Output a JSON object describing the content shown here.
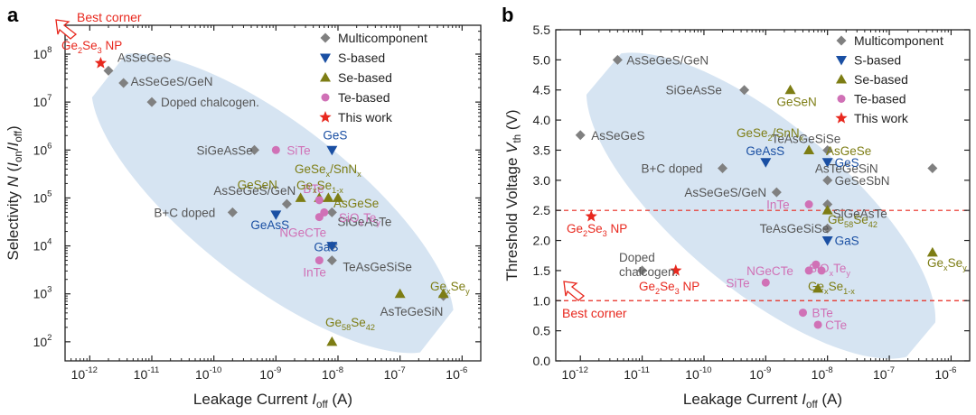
{
  "colors": {
    "multi": "#808080",
    "s": "#1a4fa3",
    "se": "#7d7d14",
    "te": "#d071b6",
    "work": "#e8281e",
    "ellipse": "#c8dbee",
    "label_grey": "#555555"
  },
  "chart_data": [
    {
      "panel": "a",
      "type": "scatter",
      "xlabel": {
        "main": "Leakage Current ",
        "sym": "I",
        "sub": "off",
        "unit": " (A)"
      },
      "ylabel": {
        "pre": "Selectivity ",
        "sym": "N",
        "open": " (",
        "num": "I",
        "num_sub": "on",
        "slash": "/",
        "den": "I",
        "den_sub": "off",
        "close": ")"
      },
      "xscale": "log",
      "yscale": "log",
      "xlim": [
        4e-13,
        2e-06
      ],
      "ylim": [
        40.0,
        400000000.0
      ],
      "x_ticks": [
        {
          "v": 1e-12,
          "b": "10",
          "e": "-12"
        },
        {
          "v": 1e-11,
          "b": "10",
          "e": "-11"
        },
        {
          "v": 1e-10,
          "b": "10",
          "e": "-10"
        },
        {
          "v": 1e-09,
          "b": "10",
          "e": "-9"
        },
        {
          "v": 1e-08,
          "b": "10",
          "e": "-8"
        },
        {
          "v": 1e-07,
          "b": "10",
          "e": "-7"
        },
        {
          "v": 1e-06,
          "b": "10",
          "e": "-6"
        }
      ],
      "y_ticks": [
        {
          "v": 100.0,
          "b": "10",
          "e": "2"
        },
        {
          "v": 1000.0,
          "b": "10",
          "e": "3"
        },
        {
          "v": 10000.0,
          "b": "10",
          "e": "4"
        },
        {
          "v": 100000.0,
          "b": "10",
          "e": "5"
        },
        {
          "v": 1000000.0,
          "b": "10",
          "e": "6"
        },
        {
          "v": 10000000.0,
          "b": "10",
          "e": "7"
        },
        {
          "v": 100000000.0,
          "b": "10",
          "e": "8"
        }
      ],
      "legend": {
        "position": "top-right",
        "entries": [
          {
            "cat": "multi",
            "label": "Multicomponent"
          },
          {
            "cat": "s",
            "label": "S-based"
          },
          {
            "cat": "se",
            "label": "Se-based"
          },
          {
            "cat": "te",
            "label": "Te-based"
          },
          {
            "cat": "work",
            "label": "This work"
          }
        ]
      },
      "best_corner": "Best corner",
      "points": [
        {
          "cat": "multi",
          "x": 2e-12,
          "y": 45000000.0,
          "label": "AsSeGeS"
        },
        {
          "cat": "multi",
          "x": 3.5e-12,
          "y": 25000000.0,
          "label": "AsSeGeS/GeN"
        },
        {
          "cat": "multi",
          "x": 1e-11,
          "y": 10000000.0,
          "label": "Doped chalcogen."
        },
        {
          "cat": "multi",
          "x": 4.5e-10,
          "y": 1000000.0,
          "label": "SiGeAsSe"
        },
        {
          "cat": "multi",
          "x": 2e-10,
          "y": 50000.0,
          "label": "B+C doped"
        },
        {
          "cat": "multi",
          "x": 1.5e-09,
          "y": 75000.0,
          "label": "AsSeGeS/GeN"
        },
        {
          "cat": "multi",
          "x": 8e-09,
          "y": 50000.0,
          "label": "SiGeAsTe"
        },
        {
          "cat": "multi",
          "x": 8e-09,
          "y": 10000.0,
          "label": ""
        },
        {
          "cat": "multi",
          "x": 8e-09,
          "y": 5000.0,
          "label": "TeAsGeSiSe"
        },
        {
          "cat": "multi",
          "x": 5e-07,
          "y": 900,
          "label": "AsTeGeSiN"
        },
        {
          "cat": "s",
          "x": 8e-09,
          "y": 1000000.0,
          "label": "GeS"
        },
        {
          "cat": "s",
          "x": 1e-09,
          "y": 45000.0,
          "label": "GeAsS"
        },
        {
          "cat": "s",
          "x": 8e-09,
          "y": 10000.0,
          "label": "GaS"
        },
        {
          "cat": "se",
          "x": 2.5e-09,
          "y": 100000.0,
          "label": "GeSeN"
        },
        {
          "cat": "se",
          "x": 5e-09,
          "y": 100000.0,
          "label": ""
        },
        {
          "cat": "se",
          "x": 7e-09,
          "y": 100000.0,
          "label": ""
        },
        {
          "cat": "se",
          "x": 1e-08,
          "y": 100000.0,
          "label": ""
        },
        {
          "cat": "se",
          "x": 1e-07,
          "y": 1000.0,
          "label": ""
        },
        {
          "cat": "se",
          "x": 5e-07,
          "y": 1000.0,
          "label": ""
        },
        {
          "cat": "se",
          "x": 8e-09,
          "y": 100,
          "label": ""
        },
        {
          "cat": "te",
          "x": 1e-09,
          "y": 1000000.0,
          "label": "SiTe"
        },
        {
          "cat": "te",
          "x": 5e-09,
          "y": 90000.0,
          "label": "BTe"
        },
        {
          "cat": "te",
          "x": 6e-09,
          "y": 50000.0,
          "label": ""
        },
        {
          "cat": "te",
          "x": 5e-09,
          "y": 40000.0,
          "label": "NGeCTe"
        },
        {
          "cat": "te",
          "x": 5e-09,
          "y": 5000.0,
          "label": "InTe"
        },
        {
          "cat": "work",
          "x": 1.5e-12,
          "y": 65000000.0,
          "label": ""
        }
      ],
      "chem_labels": [
        {
          "cat": "work",
          "parts": [
            [
              "Ge",
              ""
            ],
            [
              "2",
              "sub"
            ],
            [
              "Se",
              ""
            ],
            [
              "3",
              "sub"
            ],
            [
              " NP",
              ""
            ]
          ]
        },
        {
          "cat": "se",
          "parts": [
            [
              "GeSe",
              ""
            ],
            [
              "x",
              "sub"
            ],
            [
              "/SnN",
              ""
            ],
            [
              "x",
              "sub"
            ]
          ]
        },
        {
          "cat": "se",
          "parts": [
            [
              "Ge",
              ""
            ],
            [
              "x",
              "sub"
            ],
            [
              "Se",
              ""
            ],
            [
              "1-x",
              "sub"
            ]
          ]
        },
        {
          "cat": "se",
          "parts": [
            [
              "AsGeSe",
              ""
            ]
          ]
        },
        {
          "cat": "te",
          "parts": [
            [
              "SiO",
              ""
            ],
            [
              "x",
              "sub"
            ],
            [
              "Te",
              ""
            ],
            [
              "y",
              "sub"
            ]
          ]
        },
        {
          "cat": "se",
          "parts": [
            [
              "Ge",
              ""
            ],
            [
              "x",
              "sub"
            ],
            [
              "Se",
              ""
            ],
            [
              "y",
              "sub"
            ]
          ]
        },
        {
          "cat": "se",
          "parts": [
            [
              "Ge",
              ""
            ],
            [
              "58",
              "sub"
            ],
            [
              "Se",
              ""
            ],
            [
              "42",
              "sub"
            ]
          ]
        }
      ]
    },
    {
      "panel": "b",
      "type": "scatter",
      "xlabel": {
        "main": "Leakage Current ",
        "sym": "I",
        "sub": "off",
        "unit": " (A)"
      },
      "ylabel": {
        "pre": "Threshold Voltage ",
        "sym": "V",
        "sub": "th",
        "unit": " (V)"
      },
      "xscale": "log",
      "yscale": "linear",
      "xlim": [
        4e-13,
        2e-06
      ],
      "ylim": [
        0,
        5.5
      ],
      "x_ticks": [
        {
          "v": 1e-12,
          "b": "10",
          "e": "-12"
        },
        {
          "v": 1e-11,
          "b": "10",
          "e": "-11"
        },
        {
          "v": 1e-10,
          "b": "10",
          "e": "-10"
        },
        {
          "v": 1e-09,
          "b": "10",
          "e": "-9"
        },
        {
          "v": 1e-08,
          "b": "10",
          "e": "-8"
        },
        {
          "v": 1e-07,
          "b": "10",
          "e": "-7"
        },
        {
          "v": 1e-06,
          "b": "10",
          "e": "-6"
        }
      ],
      "y_ticks": [
        "0.0",
        "0.5",
        "1.0",
        "1.5",
        "2.0",
        "2.5",
        "3.0",
        "3.5",
        "4.0",
        "4.5",
        "5.0",
        "5.5"
      ],
      "dashed_lines": [
        1.0,
        2.5
      ],
      "legend": {
        "position": "top-right",
        "entries": [
          {
            "cat": "multi",
            "label": "Multicomponent"
          },
          {
            "cat": "s",
            "label": "S-based"
          },
          {
            "cat": "se",
            "label": "Se-based"
          },
          {
            "cat": "te",
            "label": "Te-based"
          },
          {
            "cat": "work",
            "label": "This work"
          }
        ]
      },
      "best_corner": "Best corner",
      "points": [
        {
          "cat": "multi",
          "x": 4e-12,
          "y": 5.0,
          "label": "AsSeGeS/GeN"
        },
        {
          "cat": "multi",
          "x": 4.5e-10,
          "y": 4.5,
          "label": "SiGeAsSe"
        },
        {
          "cat": "multi",
          "x": 1e-12,
          "y": 3.75,
          "label": "AsSeGeS"
        },
        {
          "cat": "multi",
          "x": 2e-10,
          "y": 3.2,
          "label": "B+C doped"
        },
        {
          "cat": "multi",
          "x": 1e-08,
          "y": 3.5,
          "label": "TeAsGeSiSe"
        },
        {
          "cat": "multi",
          "x": 1e-08,
          "y": 3.0,
          "label": "GeSeSbN"
        },
        {
          "cat": "multi",
          "x": 5e-07,
          "y": 3.2,
          "label": "AsTeGeSiN"
        },
        {
          "cat": "multi",
          "x": 1.5e-09,
          "y": 2.8,
          "label": "AsSeGeS/GeN"
        },
        {
          "cat": "multi",
          "x": 1e-08,
          "y": 2.6,
          "label": "SiGeAsTe"
        },
        {
          "cat": "multi",
          "x": 1e-08,
          "y": 2.2,
          "label": "TeAsGeSiSe"
        },
        {
          "cat": "multi",
          "x": 1e-11,
          "y": 1.5,
          "label": ""
        },
        {
          "cat": "s",
          "x": 1e-09,
          "y": 3.3,
          "label": "GeAsS"
        },
        {
          "cat": "s",
          "x": 1e-08,
          "y": 3.3,
          "label": "GeS"
        },
        {
          "cat": "s",
          "x": 1e-08,
          "y": 2.0,
          "label": "GaS"
        },
        {
          "cat": "se",
          "x": 2.5e-09,
          "y": 4.5,
          "label": "GeSeN"
        },
        {
          "cat": "se",
          "x": 5e-09,
          "y": 3.5,
          "label": ""
        },
        {
          "cat": "se",
          "x": 1e-08,
          "y": 2.5,
          "label": ""
        },
        {
          "cat": "se",
          "x": 7e-09,
          "y": 1.2,
          "label": ""
        },
        {
          "cat": "se",
          "x": 5e-07,
          "y": 1.8,
          "label": ""
        },
        {
          "cat": "te",
          "x": 5e-09,
          "y": 2.6,
          "label": "InTe"
        },
        {
          "cat": "te",
          "x": 5e-09,
          "y": 1.5,
          "label": "NGeCTe"
        },
        {
          "cat": "te",
          "x": 6.5e-09,
          "y": 1.6,
          "label": ""
        },
        {
          "cat": "te",
          "x": 8e-09,
          "y": 1.5,
          "label": ""
        },
        {
          "cat": "te",
          "x": 1e-09,
          "y": 1.3,
          "label": "SiTe"
        },
        {
          "cat": "te",
          "x": 4e-09,
          "y": 0.8,
          "label": "BTe"
        },
        {
          "cat": "te",
          "x": 7e-09,
          "y": 0.6,
          "label": "CTe"
        },
        {
          "cat": "work",
          "x": 1.5e-12,
          "y": 2.4,
          "label": ""
        },
        {
          "cat": "work",
          "x": 3.5e-11,
          "y": 1.5,
          "label": ""
        }
      ],
      "doped_label": [
        "Doped",
        "chalcogen."
      ],
      "chem_labels": [
        {
          "cat": "se",
          "parts": [
            [
              "GeSe",
              ""
            ],
            [
              "2",
              "sub"
            ],
            [
              "/SnN",
              ""
            ],
            [
              "x",
              "sub"
            ]
          ]
        },
        {
          "cat": "se",
          "parts": [
            [
              "AsGeSe",
              ""
            ]
          ]
        },
        {
          "cat": "se",
          "parts": [
            [
              "Ge",
              ""
            ],
            [
              "58",
              "sub"
            ],
            [
              "Se",
              ""
            ],
            [
              "42",
              "sub"
            ]
          ]
        },
        {
          "cat": "work",
          "parts": [
            [
              "Ge",
              ""
            ],
            [
              "2",
              "sub"
            ],
            [
              "Se",
              ""
            ],
            [
              "3",
              "sub"
            ],
            [
              " NP",
              ""
            ]
          ]
        },
        {
          "cat": "work",
          "parts": [
            [
              "Ge",
              ""
            ],
            [
              "2",
              "sub"
            ],
            [
              "Se",
              ""
            ],
            [
              "3",
              "sub"
            ],
            [
              " NP",
              ""
            ]
          ]
        },
        {
          "cat": "te",
          "parts": [
            [
              "SiO",
              ""
            ],
            [
              "x",
              "sub"
            ],
            [
              "Te",
              ""
            ],
            [
              "y",
              "sub"
            ]
          ]
        },
        {
          "cat": "se",
          "parts": [
            [
              "Ge",
              ""
            ],
            [
              "x",
              "sub"
            ],
            [
              "Se",
              ""
            ],
            [
              "1-x",
              "sub"
            ]
          ]
        },
        {
          "cat": "se",
          "parts": [
            [
              "Ge",
              ""
            ],
            [
              "x",
              "sub"
            ],
            [
              "Se",
              ""
            ],
            [
              "y",
              "sub"
            ]
          ]
        }
      ]
    }
  ],
  "panel_letters": [
    "a",
    "b"
  ]
}
